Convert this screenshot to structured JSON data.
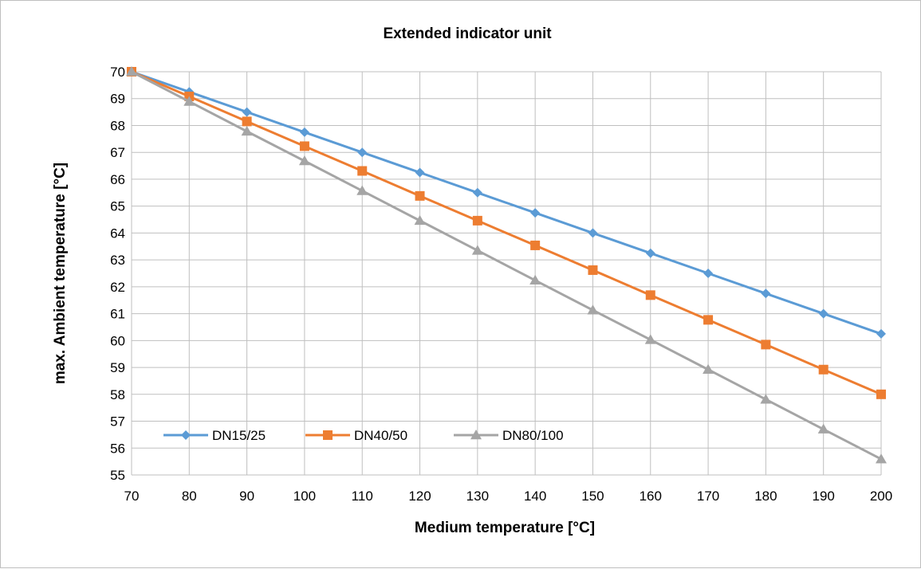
{
  "chart_data": {
    "type": "line",
    "title": "Extended indicator unit",
    "xlabel": "Medium temperature [°C]",
    "ylabel": "max. Ambient temperature [°C]",
    "x": [
      70,
      80,
      90,
      100,
      110,
      120,
      130,
      140,
      150,
      160,
      170,
      180,
      190,
      200
    ],
    "xlim": [
      70,
      200
    ],
    "ylim": [
      55,
      70
    ],
    "x_ticks": [
      "70",
      "80",
      "90",
      "100",
      "110",
      "120",
      "130",
      "140",
      "150",
      "160",
      "170",
      "180",
      "190",
      "200"
    ],
    "y_ticks": [
      "55",
      "56",
      "57",
      "58",
      "59",
      "60",
      "61",
      "62",
      "63",
      "64",
      "65",
      "66",
      "67",
      "68",
      "69",
      "70"
    ],
    "grid": true,
    "legend_position": "inside-bottom-left",
    "series": [
      {
        "name": "DN15/25",
        "color": "#5b9bd5",
        "marker": "diamond",
        "values": [
          70.0,
          69.25,
          68.5,
          67.75,
          67.0,
          66.25,
          65.5,
          64.75,
          64.0,
          63.25,
          62.5,
          61.75,
          61.0,
          60.25
        ]
      },
      {
        "name": "DN40/50",
        "color": "#ed7d31",
        "marker": "square",
        "values": [
          70.0,
          69.08,
          68.15,
          67.23,
          66.31,
          65.38,
          64.46,
          63.54,
          62.62,
          61.69,
          60.77,
          59.85,
          58.92,
          58.0
        ]
      },
      {
        "name": "DN80/100",
        "color": "#a5a5a5",
        "marker": "triangle",
        "values": [
          70.0,
          68.89,
          67.78,
          66.68,
          65.57,
          64.46,
          63.35,
          62.24,
          61.13,
          60.03,
          58.92,
          57.81,
          56.7,
          55.59
        ]
      }
    ]
  }
}
